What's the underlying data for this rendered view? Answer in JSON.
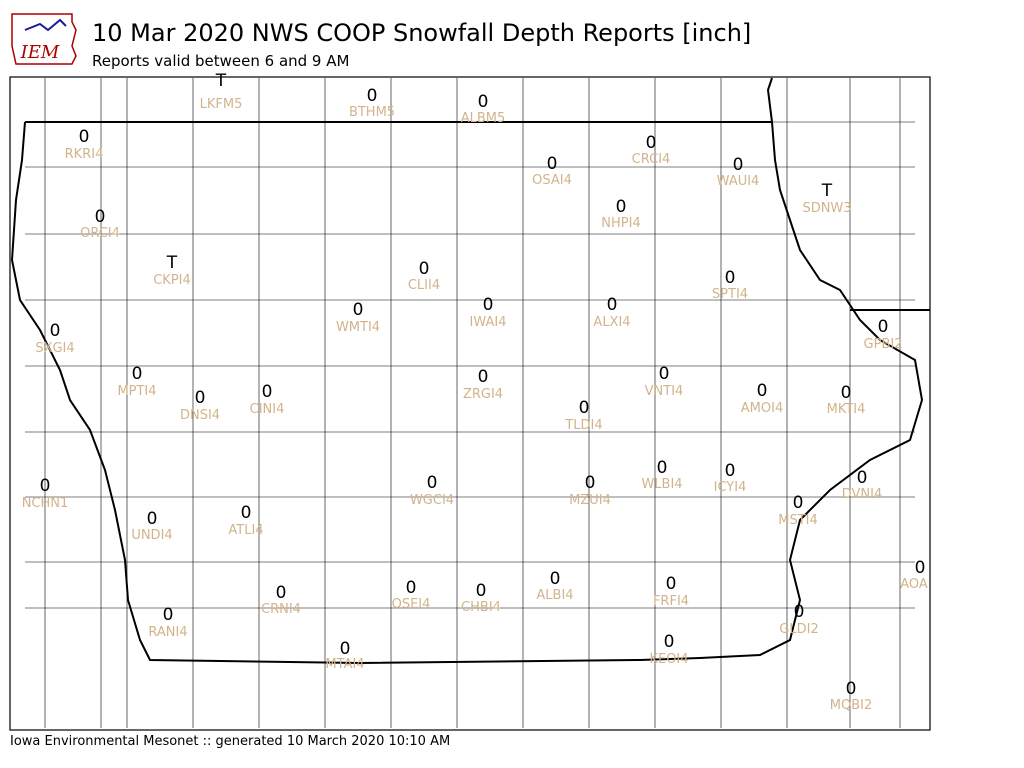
{
  "logo": "IEM",
  "header": {
    "title": "10 Mar 2020 NWS COOP Snowfall Depth Reports [inch]",
    "subtitle": "Reports valid between 6 and 9 AM"
  },
  "stations": [
    {
      "value": "T",
      "id": "LKFM5"
    },
    {
      "value": "0",
      "id": "BTHM5"
    },
    {
      "value": "0",
      "id": "ALBM5"
    },
    {
      "value": "0",
      "id": "RKRI4"
    },
    {
      "value": "0",
      "id": "CRCI4"
    },
    {
      "value": "0",
      "id": "OSAI4"
    },
    {
      "value": "0",
      "id": "WAUI4"
    },
    {
      "value": "T",
      "id": "SDNW3"
    },
    {
      "value": "0",
      "id": "NHPI4"
    },
    {
      "value": "0",
      "id": "ORCI4"
    },
    {
      "value": "T",
      "id": "CKPI4"
    },
    {
      "value": "0",
      "id": "CLII4"
    },
    {
      "value": "0",
      "id": "SPTI4"
    },
    {
      "value": "0",
      "id": "IWAI4"
    },
    {
      "value": "0",
      "id": "ALXI4"
    },
    {
      "value": "0",
      "id": "WMTI4"
    },
    {
      "value": "0",
      "id": "GPBI2"
    },
    {
      "value": "0",
      "id": "SXGI4"
    },
    {
      "value": "0",
      "id": "MPTI4"
    },
    {
      "value": "0",
      "id": "VNTI4"
    },
    {
      "value": "0",
      "id": "ZRGI4"
    },
    {
      "value": "0",
      "id": "AMOI4"
    },
    {
      "value": "0",
      "id": "CINI4"
    },
    {
      "value": "0",
      "id": "MKTI4"
    },
    {
      "value": "0",
      "id": "DNSI4"
    },
    {
      "value": "0",
      "id": "TLDI4"
    },
    {
      "value": "0",
      "id": "WLBI4"
    },
    {
      "value": "0",
      "id": "ICYI4"
    },
    {
      "value": "0",
      "id": "DVNI4"
    },
    {
      "value": "0",
      "id": "NCHN1"
    },
    {
      "value": "0",
      "id": "WGCI4"
    },
    {
      "value": "0",
      "id": "MZUI4"
    },
    {
      "value": "0",
      "id": "MSTI4"
    },
    {
      "value": "0",
      "id": "ATLI4"
    },
    {
      "value": "0",
      "id": "UNDI4"
    },
    {
      "value": "0",
      "id": "AOA"
    },
    {
      "value": "0",
      "id": "ALBI4"
    },
    {
      "value": "0",
      "id": "OSEI4"
    },
    {
      "value": "0",
      "id": "FRFI4"
    },
    {
      "value": "0",
      "id": "CHBI4"
    },
    {
      "value": "0",
      "id": "CRNI4"
    },
    {
      "value": "0",
      "id": "GLDI2"
    },
    {
      "value": "0",
      "id": "RANI4"
    },
    {
      "value": "0",
      "id": "KEOI4"
    },
    {
      "value": "0",
      "id": "MTAI4"
    },
    {
      "value": "0",
      "id": "MQBI2"
    }
  ],
  "footer": "Iowa Environmental Mesonet :: generated 10 March 2020 10:10 AM"
}
